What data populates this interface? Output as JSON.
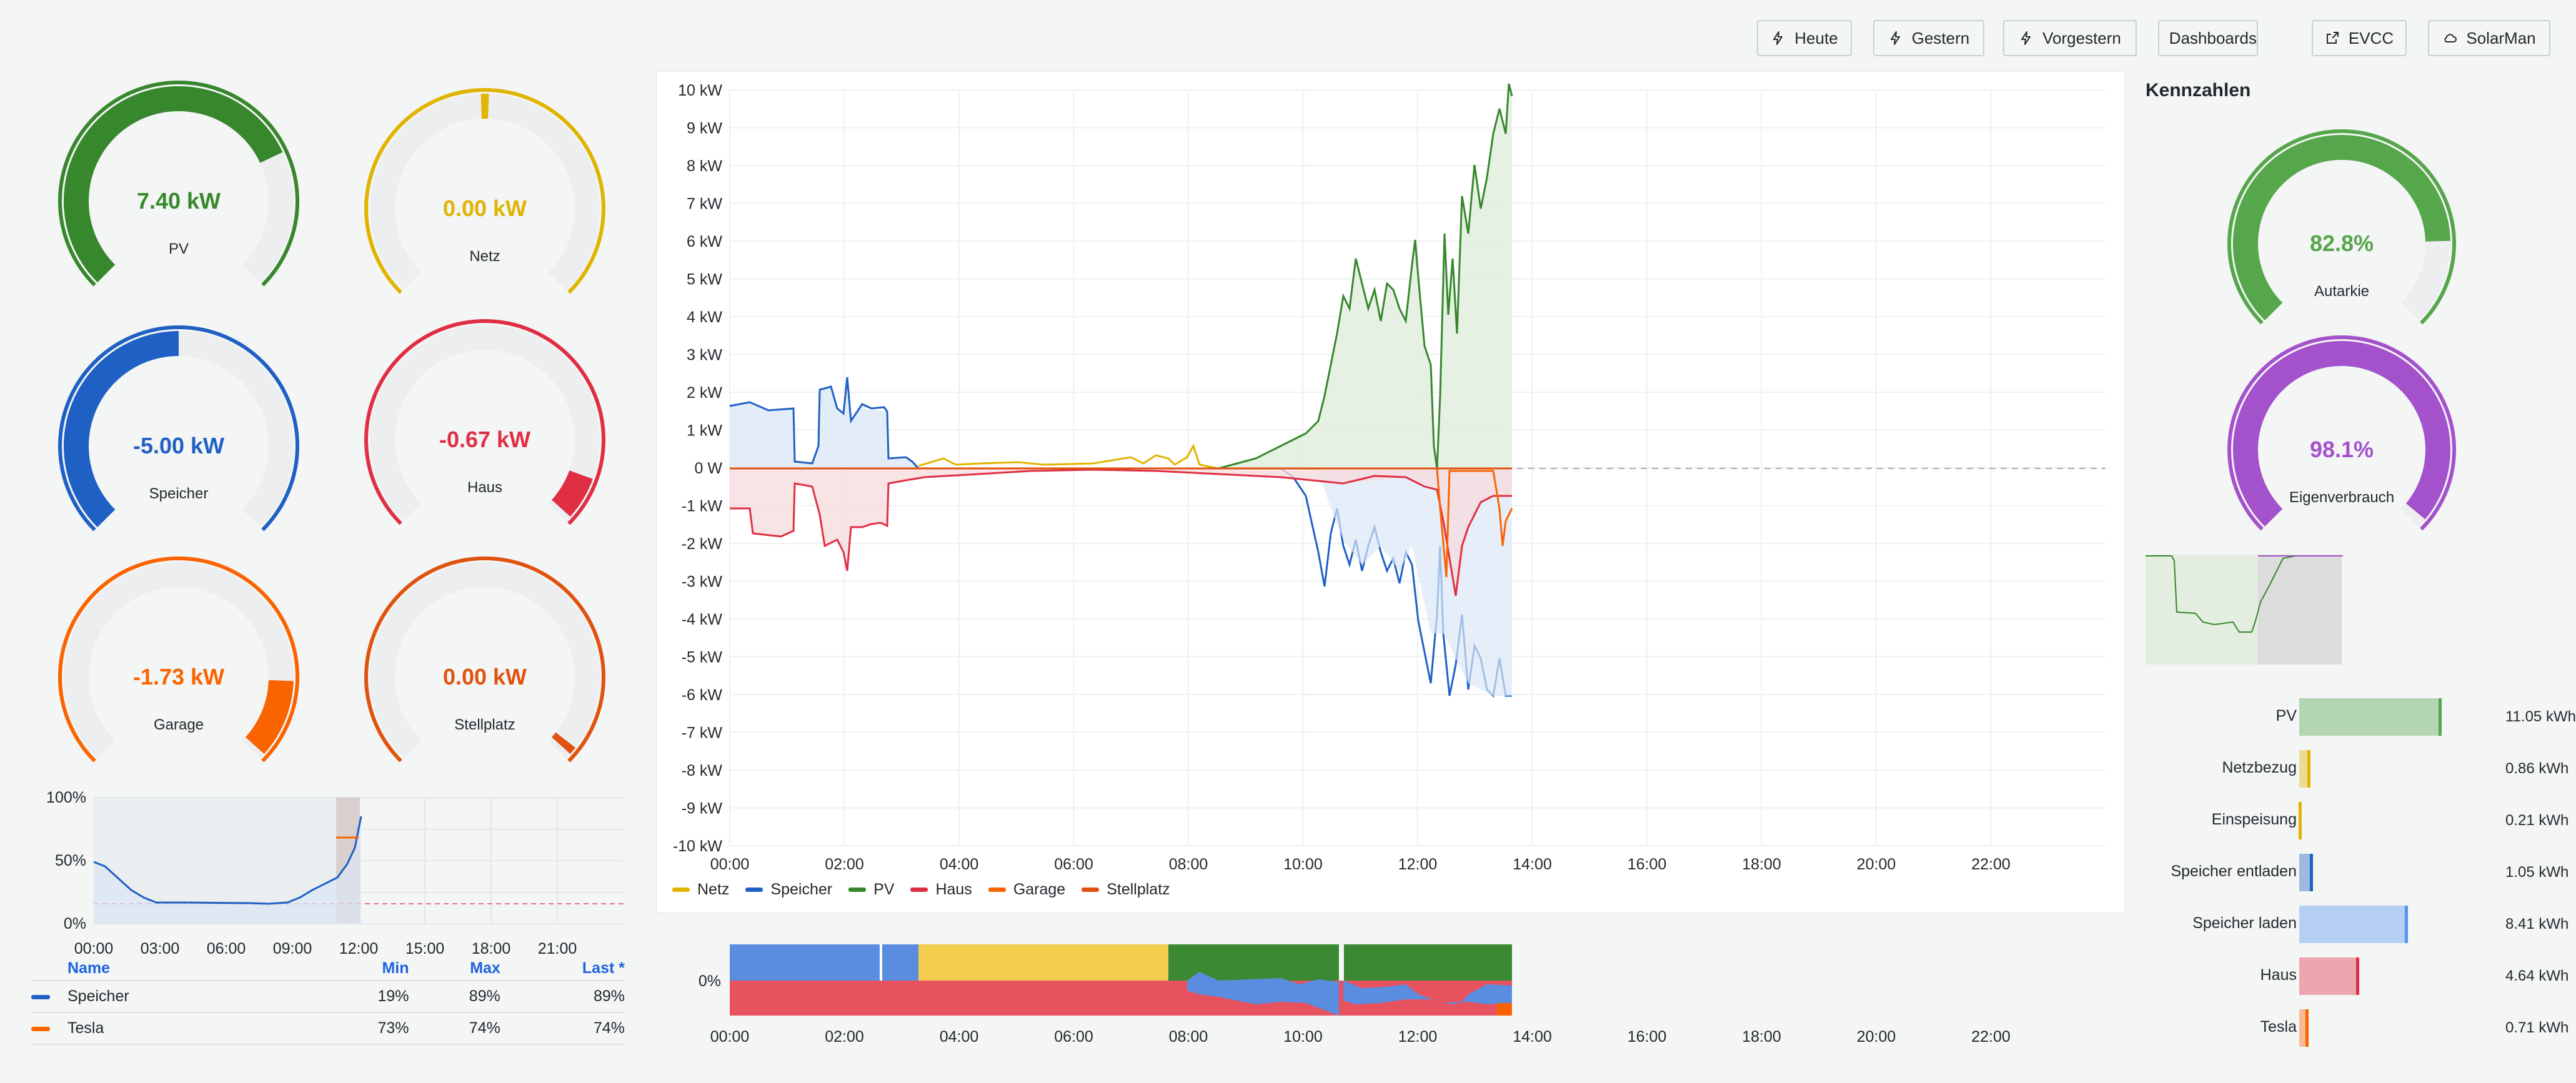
{
  "toolbar": {
    "buttons": [
      "Heute",
      "Gestern",
      "Vorgestern",
      "Dashboards",
      "EVCC",
      "SolarMan"
    ]
  },
  "gauges": [
    {
      "value": "7.40 kW",
      "label": "PV",
      "color": "#37872d",
      "fraction": 0.74
    },
    {
      "value": "0.00 kW",
      "label": "Netz",
      "color": "#e0b400",
      "fraction": 0.5
    },
    {
      "value": "-5.00 kW",
      "label": "Speicher",
      "color": "#1f60c4",
      "fraction": 0.5
    },
    {
      "value": "-0.67 kW",
      "label": "Haus",
      "color": "#e02f44",
      "fraction": 0.93
    },
    {
      "value": "-1.73 kW",
      "label": "Garage",
      "color": "#fa6400",
      "fraction": 0.83
    },
    {
      "value": "0.00 kW",
      "label": "Stellplatz",
      "color": "#e0530f",
      "fraction": 1.0
    }
  ],
  "soc_chart": {
    "y_ticks": [
      "100%",
      "50%",
      "0%"
    ],
    "x_ticks": [
      "00:00",
      "03:00",
      "06:00",
      "09:00",
      "12:00",
      "15:00",
      "18:00",
      "21:00"
    ],
    "table": {
      "headers": [
        "Name",
        "Min",
        "Max",
        "Last *"
      ],
      "rows": [
        {
          "name": "Speicher",
          "color": "#1f60c4",
          "min": "19%",
          "max": "89%",
          "last": "89%"
        },
        {
          "name": "Tesla",
          "color": "#fa6400",
          "min": "73%",
          "max": "74%",
          "last": "74%"
        }
      ]
    }
  },
  "main_chart": {
    "y_ticks": [
      "10 kW",
      "9 kW",
      "8 kW",
      "7 kW",
      "6 kW",
      "5 kW",
      "4 kW",
      "3 kW",
      "2 kW",
      "1 kW",
      "0 W",
      "-1 kW",
      "-2 kW",
      "-3 kW",
      "-4 kW",
      "-5 kW",
      "-6 kW",
      "-7 kW",
      "-8 kW",
      "-9 kW",
      "-10 kW"
    ],
    "x_ticks": [
      "00:00",
      "02:00",
      "04:00",
      "06:00",
      "08:00",
      "10:00",
      "12:00",
      "14:00",
      "16:00",
      "18:00",
      "20:00",
      "22:00"
    ],
    "legend": [
      {
        "name": "Netz",
        "color": "#e0b400"
      },
      {
        "name": "Speicher",
        "color": "#1f60c4"
      },
      {
        "name": "PV",
        "color": "#37872d"
      },
      {
        "name": "Haus",
        "color": "#e02f44"
      },
      {
        "name": "Garage",
        "color": "#fa6400"
      },
      {
        "name": "Stellplatz",
        "color": "#e0530f"
      }
    ]
  },
  "bottom_chart": {
    "y_tick": "0%",
    "x_ticks": [
      "00:00",
      "02:00",
      "04:00",
      "06:00",
      "08:00",
      "10:00",
      "12:00",
      "14:00",
      "16:00",
      "18:00",
      "20:00",
      "22:00"
    ]
  },
  "kennzahlen": {
    "title": "Kennzahlen",
    "gauges": [
      {
        "value": "82.8%",
        "label": "Autarkie",
        "color": "#56a64b",
        "fraction": 0.828
      },
      {
        "value": "98.1%",
        "label": "Eigenverbrauch",
        "color": "#a352cc",
        "fraction": 0.981
      }
    ],
    "bars": [
      {
        "label": "PV",
        "value": "11.05 kWh",
        "color": "#56a64b",
        "kwh": 11.05
      },
      {
        "label": "Netzbezug",
        "value": "0.86 kWh",
        "color": "#e0b400",
        "kwh": 0.86
      },
      {
        "label": "Einspeisung",
        "value": "0.21 kWh",
        "color": "#e0b400",
        "kwh": 0.21
      },
      {
        "label": "Speicher entladen",
        "value": "1.05 kWh",
        "color": "#1f60c4",
        "kwh": 1.05
      },
      {
        "label": "Speicher laden",
        "value": "8.41 kWh",
        "color": "#5794f2",
        "kwh": 8.41
      },
      {
        "label": "Haus",
        "value": "4.64 kWh",
        "color": "#e02f44",
        "kwh": 4.64
      },
      {
        "label": "Tesla",
        "value": "0.71 kWh",
        "color": "#fa6400",
        "kwh": 0.71
      }
    ]
  }
}
